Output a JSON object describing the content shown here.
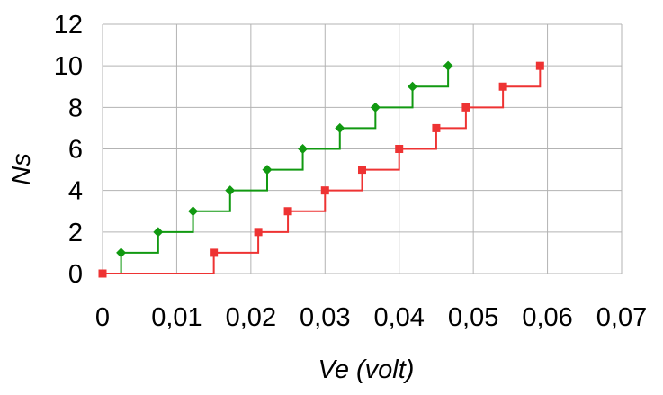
{
  "chart_data": {
    "type": "line",
    "step": true,
    "xlabel": "Ve (volt)",
    "ylabel": "Ns",
    "xlim": [
      0,
      0.07
    ],
    "ylim": [
      0,
      12
    ],
    "x_ticks": [
      0,
      0.01,
      0.02,
      0.03,
      0.04,
      0.05,
      0.06,
      0.07
    ],
    "x_tick_labels": [
      "0",
      "0,01",
      "0,02",
      "0,03",
      "0,04",
      "0,05",
      "0,06",
      "0,07"
    ],
    "y_ticks": [
      0,
      2,
      4,
      6,
      8,
      10,
      12
    ],
    "y_tick_labels": [
      "0",
      "2",
      "4",
      "6",
      "8",
      "10",
      "12"
    ],
    "grid": true,
    "legend": "none",
    "series": [
      {
        "color": "#119911",
        "marker": "diamond",
        "points": [
          [
            0.0025,
            1
          ],
          [
            0.0075,
            2
          ],
          [
            0.0122,
            3
          ],
          [
            0.0172,
            4
          ],
          [
            0.0222,
            5
          ],
          [
            0.027,
            6
          ],
          [
            0.032,
            7
          ],
          [
            0.0368,
            8
          ],
          [
            0.0418,
            9
          ],
          [
            0.0466,
            10
          ]
        ],
        "start": [
          0.0025,
          0
        ]
      },
      {
        "color": "#ee3333",
        "marker": "square",
        "points": [
          [
            0,
            0
          ],
          [
            0.015,
            1
          ],
          [
            0.021,
            2
          ],
          [
            0.025,
            3
          ],
          [
            0.03,
            4
          ],
          [
            0.035,
            5
          ],
          [
            0.04,
            6
          ],
          [
            0.045,
            7
          ],
          [
            0.049,
            8
          ],
          [
            0.054,
            9
          ],
          [
            0.059,
            10
          ]
        ]
      }
    ]
  }
}
